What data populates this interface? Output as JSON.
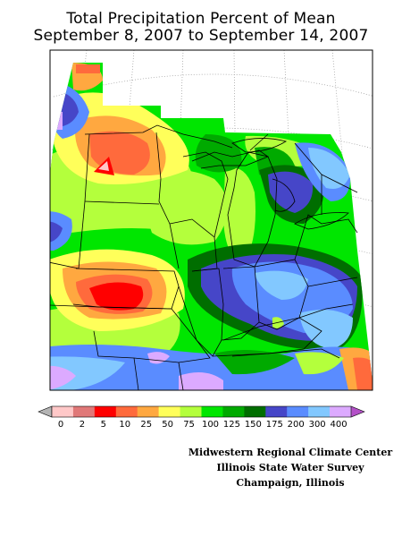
{
  "title": {
    "line1": "Total Precipitation Percent of Mean",
    "line2": "September 8, 2007 to September 14, 2007"
  },
  "legend": {
    "labels": [
      "0",
      "2",
      "5",
      "10",
      "25",
      "50",
      "75",
      "100",
      "125",
      "150",
      "175",
      "200",
      "300",
      "400"
    ],
    "arrow_left_color": "#b4b4b4",
    "arrow_right_color": "#b450c8",
    "colors": [
      "#ffc8c8",
      "#e07878",
      "#ff0000",
      "#ff6a3c",
      "#ffa840",
      "#ffff5a",
      "#b4ff3c",
      "#00e600",
      "#00aa00",
      "#006e00",
      "#4646c8",
      "#5a8cff",
      "#82c8ff",
      "#dcaaff"
    ]
  },
  "credits": {
    "line1": "Midwestern Regional Climate Center",
    "line2": "Illinois State Water Survey",
    "line3": "Champaign, Illinois"
  }
}
